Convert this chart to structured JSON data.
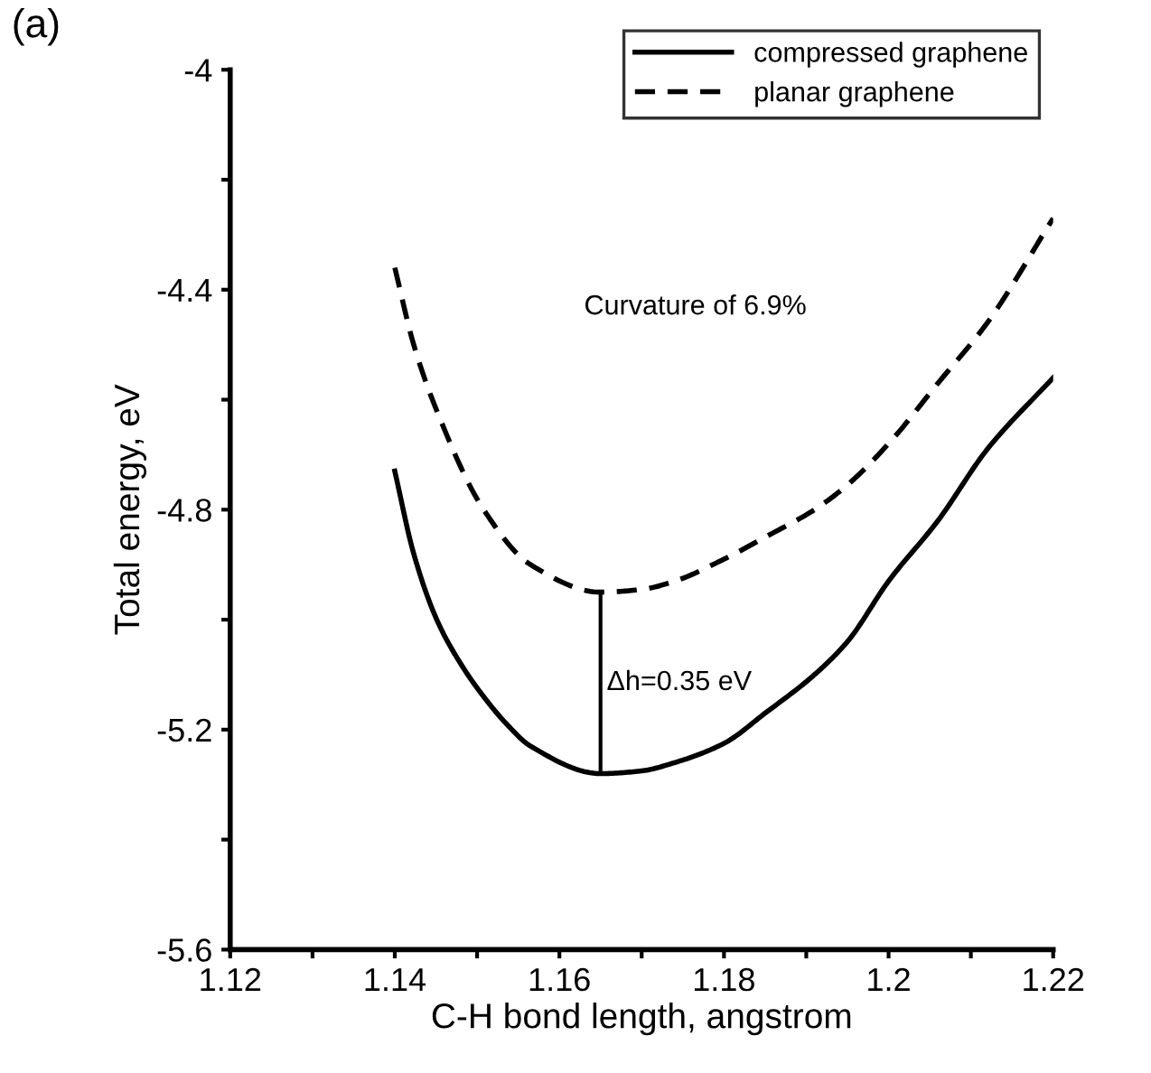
{
  "chart_data": {
    "type": "line",
    "xlabel": "C-H bond length, angstrom",
    "ylabel": "Total energy, eV",
    "xlim": [
      1.12,
      1.22
    ],
    "ylim": [
      -5.6,
      -4
    ],
    "xticks": [
      1.12,
      {
        "value": 1.13,
        "label": null
      },
      1.14,
      {
        "value": 1.15,
        "label": null
      },
      1.16,
      {
        "value": 1.17,
        "label": null
      },
      1.18,
      {
        "value": 1.19,
        "label": null
      },
      1.2,
      {
        "value": 1.21,
        "label": null
      },
      1.22
    ],
    "yticks": [
      -5.6,
      {
        "value": -5.4,
        "label": null
      },
      -5.2,
      {
        "value": -5.0,
        "label": null
      },
      -4.8,
      {
        "value": -4.6,
        "label": null
      },
      -4.4,
      {
        "value": -4.2,
        "label": null
      },
      -4
    ],
    "grid": false,
    "legend": "top right",
    "marker": "none",
    "series": [
      {
        "name": "compressed graphene",
        "color": "#000000",
        "line_style": "solid",
        "x": [
          1.14,
          1.1423,
          1.1451,
          1.148,
          1.1508,
          1.1536,
          1.1565,
          1.165,
          1.17,
          1.174,
          1.18,
          1.185,
          1.191,
          1.195,
          1.2,
          1.206,
          1.212,
          1.22
        ],
        "values": [
          -4.73,
          -4.88,
          -5.0,
          -5.08,
          -5.14,
          -5.19,
          -5.23,
          -5.28,
          -5.275,
          -5.26,
          -5.225,
          -5.17,
          -5.1,
          -5.04,
          -4.93,
          -4.82,
          -4.69,
          -4.56
        ]
      },
      {
        "name": "planar graphene",
        "color": "#000000",
        "line_style": "dashed",
        "x": [
          1.14,
          1.1423,
          1.1451,
          1.1508,
          1.1565,
          1.165,
          1.17,
          1.174,
          1.18,
          1.185,
          1.191,
          1.195,
          1.2,
          1.206,
          1.212,
          1.22
        ],
        "values": [
          -4.36,
          -4.5,
          -4.62,
          -4.8,
          -4.9,
          -4.95,
          -4.945,
          -4.93,
          -4.89,
          -4.85,
          -4.8,
          -4.755,
          -4.68,
          -4.57,
          -4.46,
          -4.27
        ]
      }
    ],
    "annotations": [
      "(a)",
      "Curvature of 6.9%",
      "Δh=0.35 eV"
    ]
  }
}
